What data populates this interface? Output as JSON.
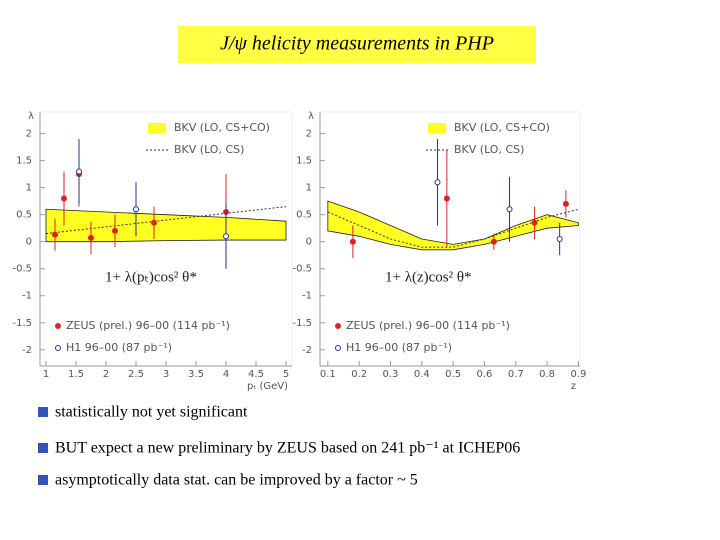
{
  "title": "J/ψ helicity measurements in PHP",
  "bullets": [
    "statistically not yet significant",
    "BUT expect a new preliminary by ZEUS based on 241 pb⁻¹ at ICHEP06",
    "asymptotically data stat. can be improved by a factor ~ 5"
  ],
  "chart_data": [
    {
      "type": "scatter",
      "ylabel": "λ",
      "xlabel": "pₜ (GeV)",
      "annotation": "1+ λ(pₜ)cos² θ*",
      "xlim": [
        0.9,
        5.1
      ],
      "ylim": [
        -2.3,
        2.4
      ],
      "xticks": [
        1,
        1.5,
        2,
        2.5,
        3,
        3.5,
        4,
        4.5,
        5
      ],
      "yticks": [
        2,
        1.5,
        1,
        0.5,
        0,
        -0.5,
        -1,
        -1.5,
        -2
      ],
      "series": [
        {
          "name": "BKV (LO, CS+CO)",
          "kind": "band",
          "color": "#ffff22",
          "x": [
            1,
            2,
            3,
            4,
            5
          ],
          "upper": [
            0.6,
            0.55,
            0.5,
            0.45,
            0.38
          ],
          "lower": [
            0,
            0,
            0.02,
            0.03,
            0.03
          ]
        },
        {
          "name": "BKV (LO, CS)",
          "kind": "line",
          "color": "#333333",
          "x": [
            1,
            5
          ],
          "values": [
            0.15,
            0.65
          ]
        },
        {
          "name": "ZEUS (prel.) 96–00 (114 pb⁻¹)",
          "kind": "points",
          "marker": "filled",
          "color": "#dd2222",
          "x": [
            1.15,
            1.3,
            1.55,
            1.75,
            2.15,
            2.8,
            4
          ],
          "values": [
            0.13,
            0.8,
            1.25,
            0.07,
            0.2,
            0.35,
            0.55
          ],
          "errors": [
            0.3,
            0.5,
            0.6,
            0.3,
            0.3,
            0.3,
            0.7
          ]
        },
        {
          "name": "H1 96–00 (87 pb⁻¹)",
          "kind": "points",
          "marker": "open",
          "color": "#223388",
          "x": [
            1.55,
            2.5,
            4
          ],
          "values": [
            1.3,
            0.6,
            0.1
          ],
          "errors": [
            0.6,
            0.5,
            0.6
          ]
        }
      ]
    },
    {
      "type": "scatter",
      "ylabel": "λ",
      "xlabel": "z",
      "annotation": "1+ λ(z)cos² θ*",
      "xlim": [
        0.075,
        0.905
      ],
      "ylim": [
        -2.3,
        2.4
      ],
      "xticks": [
        0.1,
        0.2,
        0.3,
        0.4,
        0.5,
        0.6,
        0.7,
        0.8,
        0.9
      ],
      "yticks": [
        2,
        1.5,
        1,
        0.5,
        0,
        -0.5,
        -1,
        -1.5,
        -2
      ],
      "series": [
        {
          "name": "BKV (LO, CS+CO)",
          "kind": "band",
          "color": "#ffff22",
          "x": [
            0.1,
            0.2,
            0.3,
            0.4,
            0.5,
            0.6,
            0.7,
            0.8,
            0.9
          ],
          "upper": [
            0.75,
            0.55,
            0.3,
            0.05,
            -0.05,
            0.05,
            0.3,
            0.5,
            0.35
          ],
          "lower": [
            0.2,
            0.1,
            -0.05,
            -0.15,
            -0.15,
            -0.05,
            0.1,
            0.25,
            0.3
          ]
        },
        {
          "name": "BKV (LO, CS)",
          "kind": "line",
          "color": "#333333",
          "x": [
            0.1,
            0.2,
            0.3,
            0.4,
            0.5,
            0.6,
            0.7,
            0.8,
            0.9
          ],
          "values": [
            0.55,
            0.3,
            0.05,
            -0.1,
            -0.1,
            0.05,
            0.25,
            0.45,
            0.6
          ]
        },
        {
          "name": "ZEUS (prel.) 96–00 (114 pb⁻¹)",
          "kind": "points",
          "marker": "filled",
          "color": "#dd2222",
          "x": [
            0.18,
            0.48,
            0.63,
            0.76,
            0.86
          ],
          "values": [
            0,
            0.8,
            0,
            0.35,
            0.7
          ],
          "errors": [
            0.3,
            0.9,
            0.15,
            0.3,
            0.25
          ]
        },
        {
          "name": "H1 96–00 (87 pb⁻¹)",
          "kind": "points",
          "marker": "open",
          "color": "#223388",
          "x": [
            0.45,
            0.68,
            0.84
          ],
          "values": [
            1.1,
            0.6,
            0.05
          ],
          "errors": [
            0.8,
            0.6,
            0.3
          ]
        }
      ]
    }
  ]
}
